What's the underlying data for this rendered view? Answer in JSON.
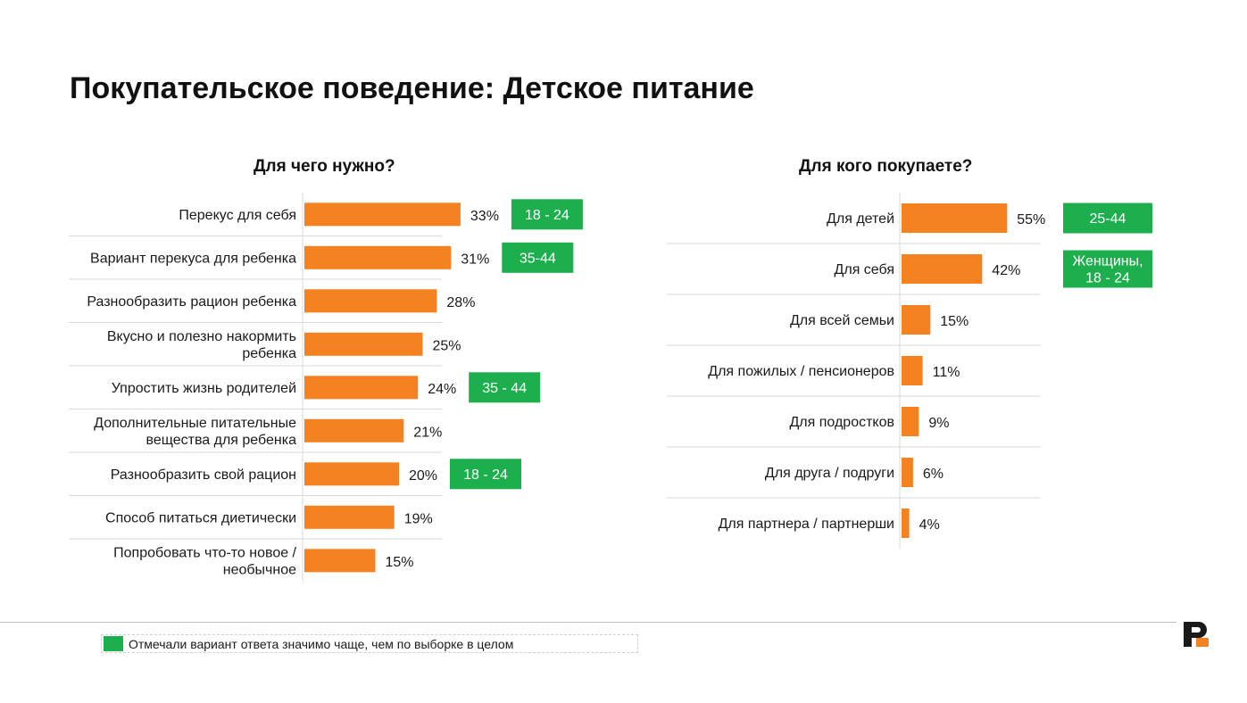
{
  "page": {
    "title": "Покупательское поведение: Детское питание"
  },
  "colors": {
    "bar": "#F58220",
    "highlight": "#1DAF4E",
    "divider": "#d9d9d9"
  },
  "legend": {
    "text": "Отмечали вариант ответа значимо чаще, чем по выборке в целом",
    "swatch_color": "#1DAF4E"
  },
  "logo": {
    "icon": "p-logo-icon",
    "colors": [
      "#1a1a1a",
      "#F58220"
    ]
  },
  "chart_data": [
    {
      "type": "bar",
      "orientation": "horizontal",
      "title": "Для чего нужно?",
      "categories": [
        [
          "Перекус для себя"
        ],
        [
          "Вариант перекуса для ребенка"
        ],
        [
          "Разнообразить рацион ребенка"
        ],
        [
          "Вкусно и полезно накормить",
          "ребенка"
        ],
        [
          "Упростить жизнь родителей"
        ],
        [
          "Дополнительные питательные",
          "вещества для ребенка"
        ],
        [
          "Разнообразить свой рацион"
        ],
        [
          "Способ питаться диетически"
        ],
        [
          "Попробовать что-то новое /",
          "необычное"
        ]
      ],
      "values": [
        33,
        31,
        28,
        25,
        24,
        21,
        20,
        19,
        15
      ],
      "value_labels": [
        "33%",
        "31%",
        "28%",
        "25%",
        "24%",
        "21%",
        "20%",
        "19%",
        "15%"
      ],
      "highlights": [
        [
          "18 - 24"
        ],
        [
          "35-44"
        ],
        null,
        null,
        [
          "35 - 44"
        ],
        null,
        [
          "18 - 24"
        ],
        null,
        null
      ],
      "unit": "%"
    },
    {
      "type": "bar",
      "orientation": "horizontal",
      "title": "Для кого покупаете?",
      "categories": [
        [
          "Для детей"
        ],
        [
          "Для себя"
        ],
        [
          "Для всей семьи"
        ],
        [
          "Для пожилых / пенсионеров"
        ],
        [
          "Для подростков"
        ],
        [
          "Для друга / подруги"
        ],
        [
          "Для партнера / партнерши"
        ]
      ],
      "values": [
        55,
        42,
        15,
        11,
        9,
        6,
        4
      ],
      "value_labels": [
        "55%",
        "42%",
        "15%",
        "11%",
        "9%",
        "6%",
        "4%"
      ],
      "highlights": [
        [
          "25-44"
        ],
        [
          "Женщины,",
          "18 - 24"
        ],
        null,
        null,
        null,
        null,
        null
      ],
      "unit": "%"
    }
  ]
}
